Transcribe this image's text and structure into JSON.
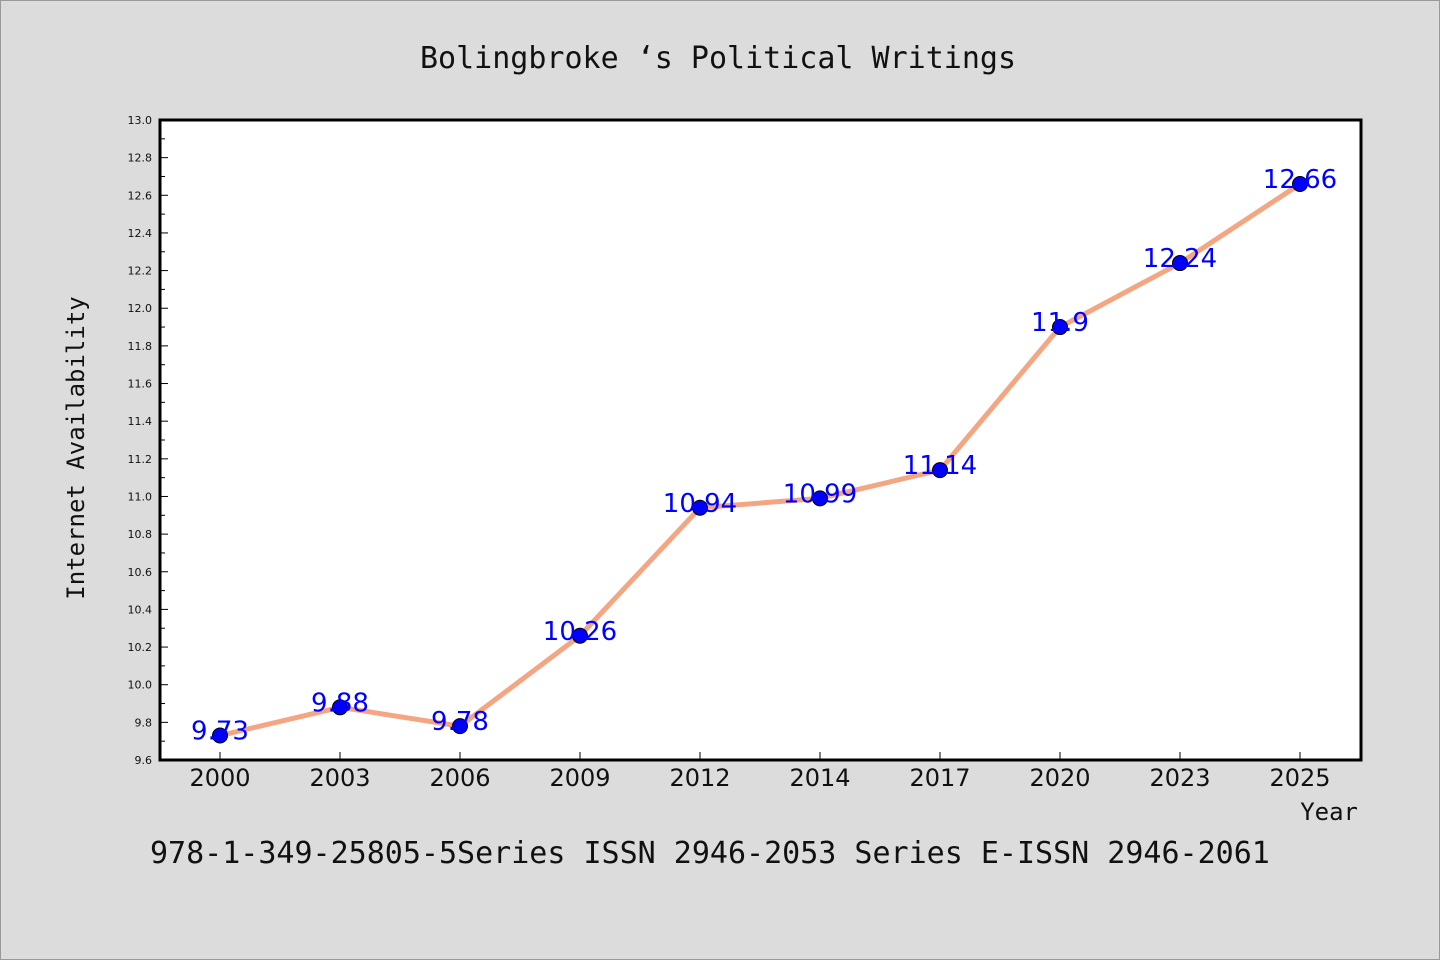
{
  "chart_data": {
    "type": "line",
    "title": "Bolingbroke ‘s Political Writings",
    "xlabel": "Year",
    "ylabel": "Internet Availability",
    "categories": [
      "2000",
      "2003",
      "2006",
      "2009",
      "2012",
      "2014",
      "2017",
      "2020",
      "2023",
      "2025"
    ],
    "series": [
      {
        "values": [
          9.73,
          9.88,
          9.78,
          10.26,
          10.94,
          10.99,
          11.14,
          11.9,
          12.24,
          12.66
        ],
        "line_color": "#f4a582",
        "marker_color": "#0000ff"
      }
    ],
    "data_labels": [
      "9.73",
      "9.88",
      "9.78",
      "10.26",
      "10.94",
      "10.99",
      "11.14",
      "11.9",
      "12.24",
      "12.66"
    ],
    "ylim": [
      9.6,
      13.0
    ],
    "yticks": [
      "9.6",
      "9.8",
      "10.0",
      "10.2",
      "10.4",
      "10.6",
      "10.8",
      "11.0",
      "11.2",
      "11.4",
      "11.6",
      "11.8",
      "12.0",
      "12.2",
      "12.4",
      "12.6",
      "12.8",
      "13.0"
    ],
    "grid": false,
    "legend": "none",
    "background_color": "#dcdcdc",
    "plot_background": "#ffffff",
    "footer": "978-1-349-25805-5Series ISSN 2946-2053 Series E-ISSN 2946-2061"
  }
}
